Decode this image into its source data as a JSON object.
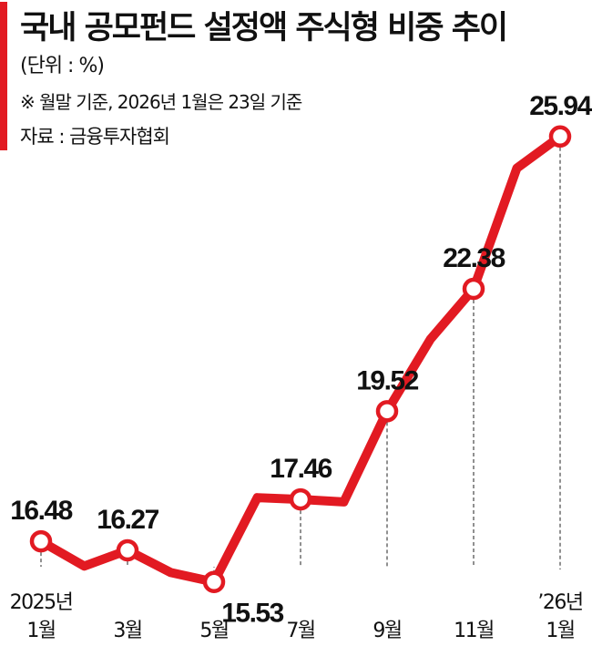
{
  "header": {
    "title": "국내 공모펀드 설정액 주식형 비중 추이",
    "unit": "(단위 : %)",
    "note": "※ 월말 기준, 2026년 1월은 23일 기준",
    "source": "자료 : 금융투자협회"
  },
  "colors": {
    "accent": "#e21a22",
    "line": "#e21a22",
    "text": "#111111",
    "guide": "#555555"
  },
  "chart_data": {
    "type": "line",
    "title": "국내 공모펀드 설정액 주식형 비중 추이",
    "xlabel": "",
    "ylabel": "",
    "unit": "(단위 : %)",
    "grid": false,
    "legend": "none",
    "ylim": [
      14.8,
      27.0
    ],
    "x": [
      "2025-01",
      "2025-02",
      "2025-03",
      "2025-04",
      "2025-05",
      "2025-06",
      "2025-07",
      "2025-08",
      "2025-09",
      "2025-10",
      "2025-11",
      "2025-12",
      "2026-01"
    ],
    "y": [
      16.48,
      15.9,
      16.27,
      15.75,
      15.53,
      17.5,
      17.46,
      17.4,
      19.52,
      21.2,
      22.38,
      25.2,
      25.94
    ],
    "marked_points": [
      {
        "index": 0,
        "label": "16.48",
        "tick": [
          "2025년",
          "1월"
        ]
      },
      {
        "index": 2,
        "label": "16.27",
        "tick": [
          "",
          "3월"
        ]
      },
      {
        "index": 4,
        "label": "15.53",
        "tick": [
          "",
          "5월"
        ]
      },
      {
        "index": 6,
        "label": "17.46",
        "tick": [
          "",
          "7월"
        ]
      },
      {
        "index": 8,
        "label": "19.52",
        "tick": [
          "",
          "9월"
        ]
      },
      {
        "index": 10,
        "label": "22.38",
        "tick": [
          "",
          "11월"
        ]
      },
      {
        "index": 12,
        "label": "25.94",
        "tick": [
          "’26년",
          "1월"
        ]
      }
    ]
  }
}
